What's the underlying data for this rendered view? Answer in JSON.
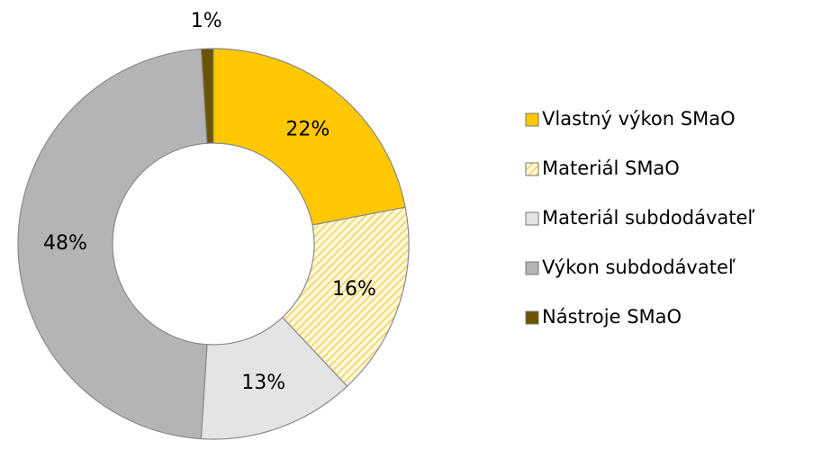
{
  "chart_data": {
    "type": "donut",
    "categories": [
      "Vlastný výkon SMaO",
      "Materiál SMaO",
      "Materiál subdodávateľ",
      "Výkon subdodávateľ",
      "Nástroje SMaO"
    ],
    "values": [
      22,
      16,
      13,
      48,
      1
    ],
    "value_labels": [
      "22%",
      "16%",
      "13%",
      "48%",
      "1%"
    ],
    "colors": [
      "#ffc800",
      "#f5e6a0",
      "#e4e4e4",
      "#b4b4b4",
      "#6b5300"
    ],
    "hatch": [
      false,
      true,
      false,
      false,
      false
    ],
    "legend": "right"
  }
}
